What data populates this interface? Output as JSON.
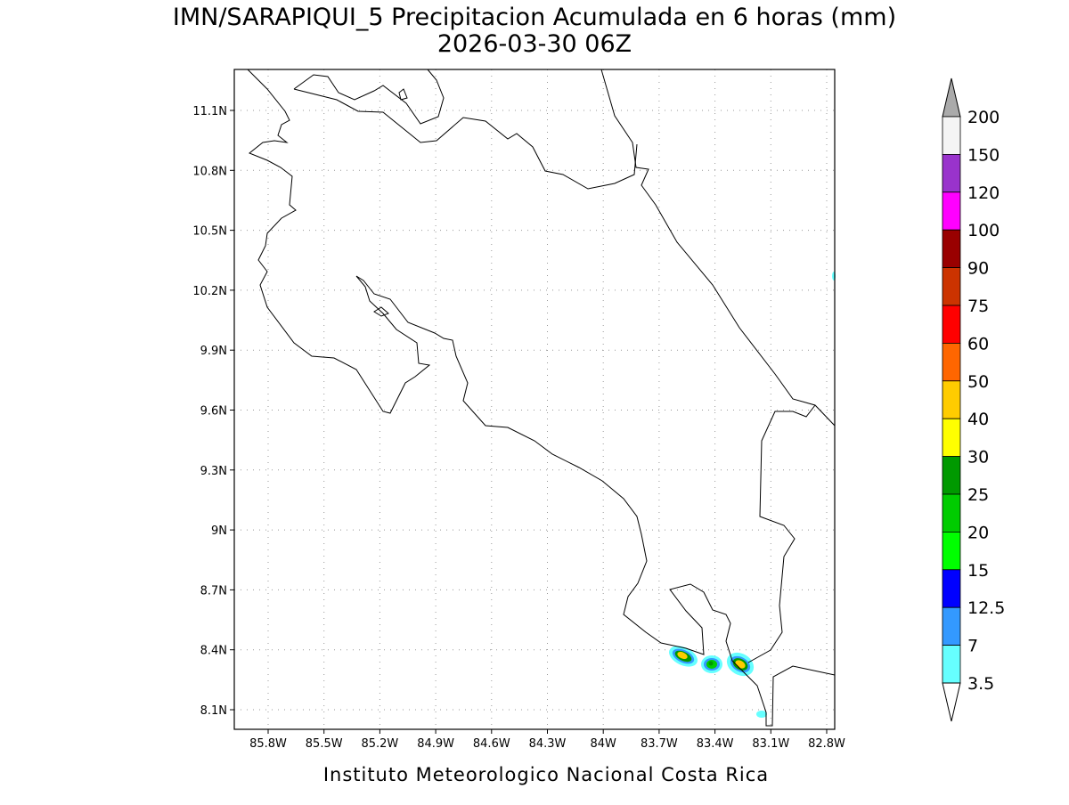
{
  "title": "IMN/SARAPIQUI_5 Precipitacion Acumulada en 6 horas (mm)",
  "subtitle": "2026-03-30 06Z",
  "map": {
    "lat_labels": [
      "11.1N",
      "10.8N",
      "10.5N",
      "10.2N",
      "9.9N",
      "9.6N",
      "9.3N",
      "9N",
      "8.7N",
      "8.4N",
      "8.1N"
    ],
    "lon_labels": [
      "85.8W",
      "85.5W",
      "85.2W",
      "84.9W",
      "84.6W",
      "84.3W",
      "84W",
      "83.7W",
      "83.4W",
      "83.1W",
      "82.8W"
    ]
  },
  "colorbar": {
    "labels": [
      200,
      150,
      120,
      100,
      90,
      75,
      60,
      50,
      40,
      30,
      25,
      20,
      15,
      12.5,
      7,
      3.5
    ],
    "colors": [
      "#f4f4f4",
      "#9933cc",
      "#ff00ff",
      "#990000",
      "#cc3300",
      "#ff0000",
      "#ff6600",
      "#ffcc00",
      "#ffff00",
      "#009900",
      "#00cc00",
      "#00ff00",
      "#0000ff",
      "#3399ff",
      "#66ffff"
    ],
    "over_color": "#aaaaaa",
    "under_color": "#ffffff"
  },
  "footer": "Instituto Meteorologico Nacional Costa Rica"
}
